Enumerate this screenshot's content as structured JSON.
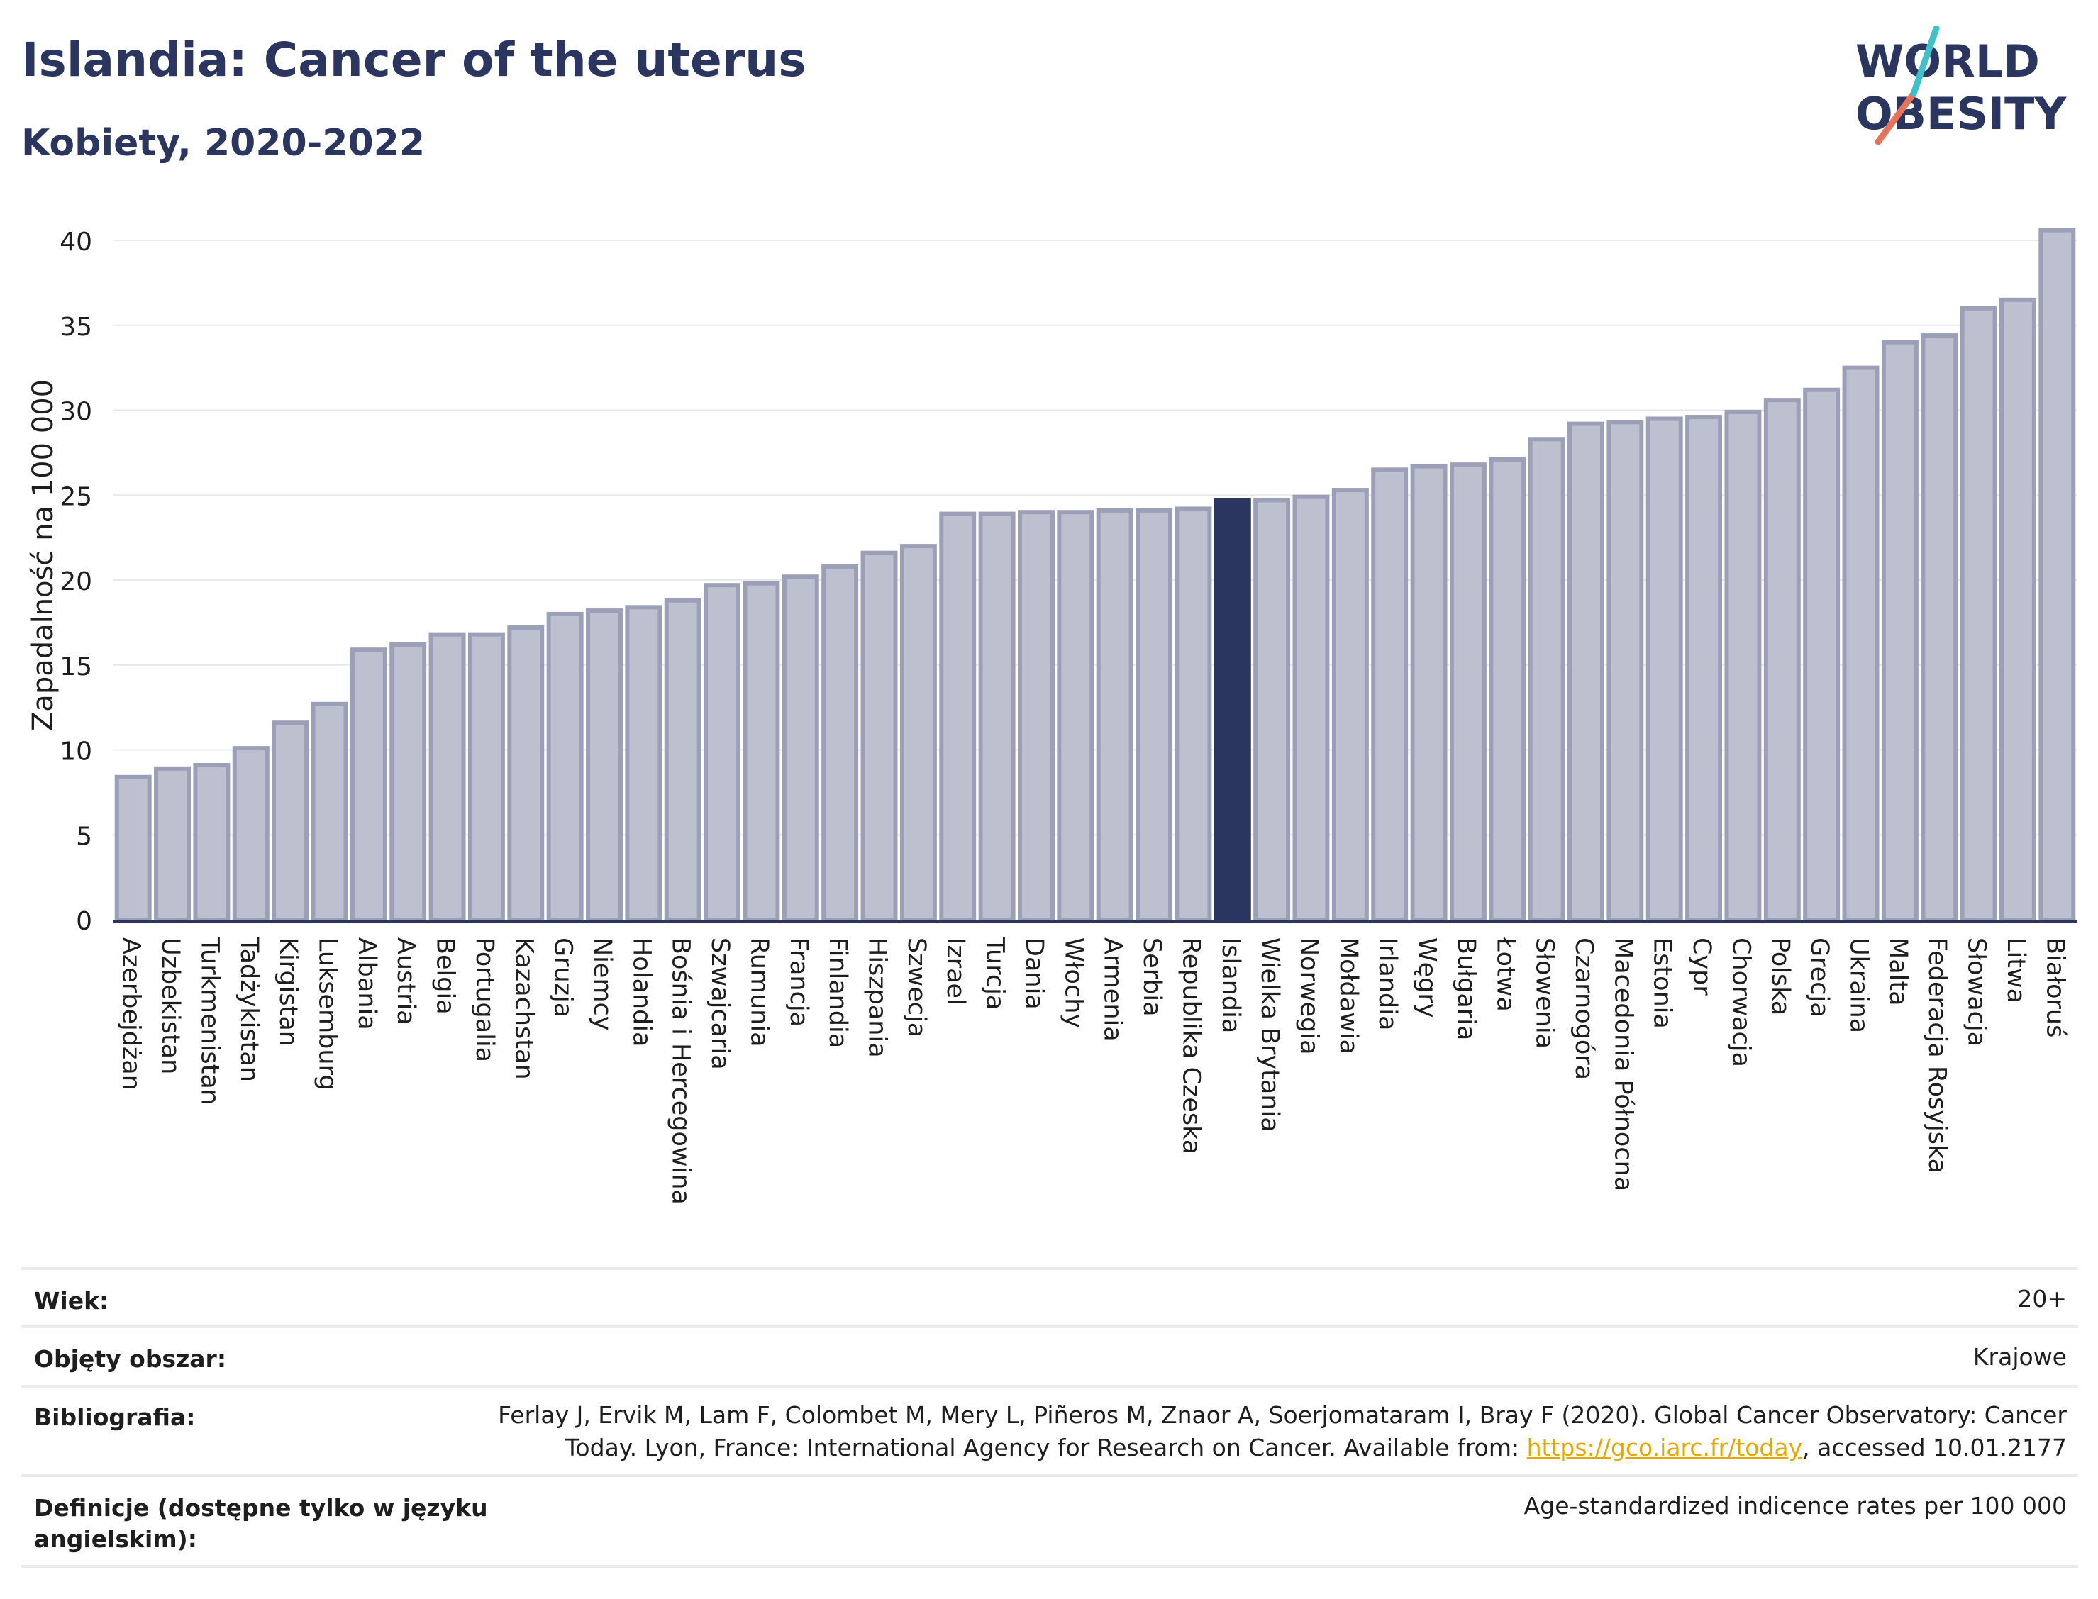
{
  "header": {
    "title": "Islandia: Cancer of the uterus",
    "subtitle": "Kobiety, 2020-2022"
  },
  "logo": {
    "line1": "WORLD",
    "line2": "OBESITY"
  },
  "colors": {
    "bar": "#bcc0cf",
    "bar_border": "#9ba0b8",
    "highlight": "#2a3560",
    "text": "#2a3560"
  },
  "chart_data": {
    "type": "bar",
    "ylabel": "Zapadalność na 100 000",
    "ylim": [
      0,
      42
    ],
    "yticks": [
      0,
      5,
      10,
      15,
      20,
      25,
      30,
      35,
      40
    ],
    "grid": true,
    "highlight": "Islandia",
    "categories": [
      "Azerbejdżan",
      "Uzbekistan",
      "Turkmenistan",
      "Tadżykistan",
      "Kirgistan",
      "Luksemburg",
      "Albania",
      "Austria",
      "Belgia",
      "Portugalia",
      "Kazachstan",
      "Gruzja",
      "Niemcy",
      "Holandia",
      "Bośnia i Hercegowina",
      "Szwajcaria",
      "Rumunia",
      "Francja",
      "Finlandia",
      "Hiszpania",
      "Szwecja",
      "Izrael",
      "Turcja",
      "Dania",
      "Włochy",
      "Armenia",
      "Serbia",
      "Republika Czeska",
      "Islandia",
      "Wielka Brytania",
      "Norwegia",
      "Mołdawia",
      "Irlandia",
      "Węgry",
      "Bułgaria",
      "Łotwa",
      "Słowenia",
      "Czarnogóra",
      "Macedonia Północna",
      "Estonia",
      "Cypr",
      "Chorwacja",
      "Polska",
      "Grecja",
      "Ukraina",
      "Malta",
      "Federacja Rosyjska",
      "Słowacja",
      "Litwa",
      "Białoruś"
    ],
    "values": [
      8.4,
      8.9,
      9.1,
      10.1,
      11.6,
      12.7,
      15.9,
      16.2,
      16.8,
      16.8,
      17.2,
      18.0,
      18.2,
      18.4,
      18.8,
      19.7,
      19.8,
      20.2,
      20.8,
      21.6,
      22.0,
      23.9,
      23.9,
      24.0,
      24.0,
      24.1,
      24.1,
      24.2,
      24.7,
      24.7,
      24.9,
      25.3,
      26.5,
      26.7,
      26.8,
      27.1,
      28.3,
      29.2,
      29.3,
      29.5,
      29.6,
      29.9,
      30.6,
      31.2,
      32.5,
      34.0,
      34.4,
      36.0,
      36.5,
      40.6
    ]
  },
  "meta": {
    "age_label": "Wiek:",
    "age_value": "20+",
    "area_label": "Objęty obszar:",
    "area_value": "Krajowe",
    "bib_label": "Bibliografia:",
    "bib_line1": "Ferlay J, Ervik M, Lam F, Colombet M, Mery L, Piñeros M, Znaor A, Soerjomataram I, Bray F (2020). Global Cancer Observatory: Cancer",
    "bib_line2_pre": "Today. Lyon, France: International Agency for Research on Cancer. Available from: ",
    "bib_link": "https://gco.iarc.fr/today",
    "bib_line2_post": ", accessed 10.01.2177",
    "def_label_1": "Definicje (dostępne tylko w języku",
    "def_label_2": "angielskim):",
    "def_value": "Age-standardized indicence rates per 100 000"
  }
}
